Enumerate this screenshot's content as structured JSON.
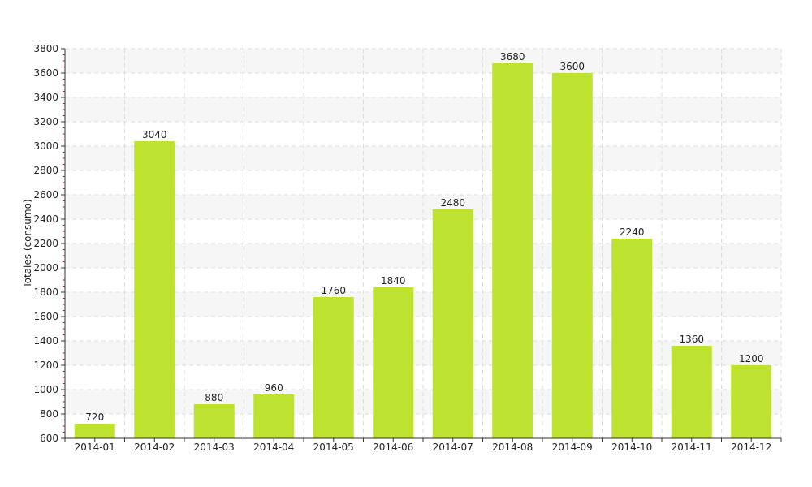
{
  "colors": {
    "bar": "#bde22f",
    "grid": "#dddddd",
    "band": "#f6f6f6",
    "axis": "#333333",
    "minor_tick": "#b02020"
  },
  "chart_data": {
    "type": "bar",
    "title": "",
    "xlabel": "",
    "ylabel": "Totales (consumo)",
    "categories": [
      "2014-01",
      "2014-02",
      "2014-03",
      "2014-04",
      "2014-05",
      "2014-06",
      "2014-07",
      "2014-08",
      "2014-09",
      "2014-10",
      "2014-11",
      "2014-12"
    ],
    "values": [
      720,
      3040,
      880,
      960,
      1760,
      1840,
      2480,
      3680,
      3600,
      2240,
      1360,
      1200
    ],
    "ylim": [
      600,
      3800
    ],
    "yticks": [
      600,
      800,
      1000,
      1200,
      1400,
      1600,
      1800,
      2000,
      2200,
      2400,
      2600,
      2800,
      3000,
      3200,
      3400,
      3600,
      3800
    ],
    "grid": true,
    "legend": "none",
    "data_labels": true
  }
}
